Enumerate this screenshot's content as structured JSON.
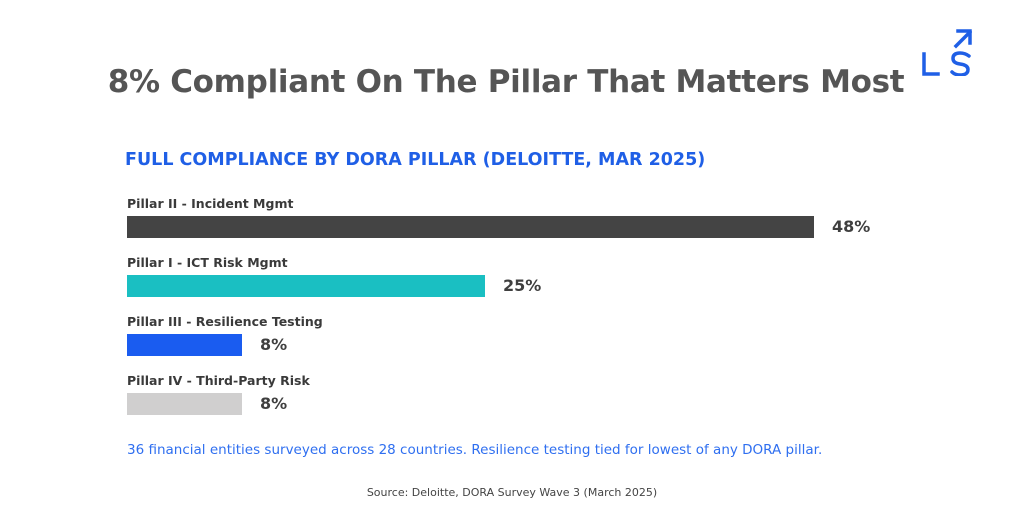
{
  "brand": {
    "logo_text": "LS",
    "accent_color": "#1f5fe6"
  },
  "header": {
    "title": "8% Compliant On The Pillar That Matters Most"
  },
  "chart_data": {
    "type": "bar",
    "orientation": "horizontal",
    "title": "FULL COMPLIANCE BY DORA PILLAR (DELOITTE, MAR 2025)",
    "categories": [
      "Pillar II - Incident Mgmt",
      "Pillar I - ICT Risk Mgmt",
      "Pillar III - Resilience Testing",
      "Pillar IV - Third-Party Risk"
    ],
    "values": [
      48,
      25,
      8,
      8
    ],
    "value_labels": [
      "48%",
      "25%",
      "8%",
      "8%"
    ],
    "colors": [
      "#444444",
      "#1abfc2",
      "#1a5cf0",
      "#d0cfcf"
    ],
    "unit": "%",
    "xlim": [
      0,
      48
    ],
    "grid": false,
    "legend": "none"
  },
  "footer": {
    "note": "36 financial entities surveyed across 28 countries. Resilience testing tied for lowest of any DORA pillar.",
    "source": "Source: Deloitte, DORA Survey Wave 3 (March 2025)"
  }
}
